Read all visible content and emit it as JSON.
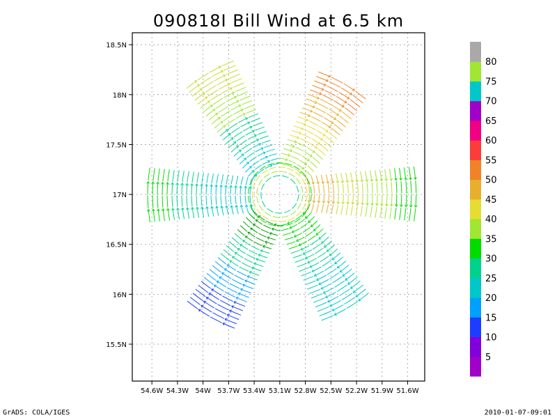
{
  "title": "090818I Bill Wind at 6.5 km",
  "footer": {
    "left": "GrADS: COLA/IGES",
    "right": "2010-01-07-09:01"
  },
  "chart_data": {
    "type": "vector-field",
    "title": "090818I Bill Wind at 6.5 km",
    "x_ticks": [
      "54.6W",
      "54.3W",
      "54W",
      "53.7W",
      "53.4W",
      "53.1W",
      "52.8W",
      "52.5W",
      "52.2W",
      "51.9W",
      "51.6W"
    ],
    "x_tick_values": [
      -54.6,
      -54.3,
      -54.0,
      -53.7,
      -53.4,
      -53.1,
      -52.8,
      -52.5,
      -52.2,
      -51.9,
      -51.6
    ],
    "y_ticks": [
      "15.5N",
      "16N",
      "16.5N",
      "17N",
      "17.5N",
      "18N",
      "18.5N"
    ],
    "y_tick_values": [
      15.5,
      16.0,
      16.5,
      17.0,
      17.5,
      18.0,
      18.5
    ],
    "xlim": [
      -54.83,
      -51.4
    ],
    "ylim": [
      15.13,
      18.62
    ],
    "grid": true,
    "center": {
      "lon": -53.1,
      "lat": 17.0
    },
    "colorbar": {
      "labels": [
        "5",
        "10",
        "15",
        "20",
        "25",
        "30",
        "35",
        "40",
        "45",
        "50",
        "55",
        "60",
        "65",
        "70",
        "75",
        "80"
      ],
      "colors": [
        "#a000c8",
        "#8200dc",
        "#1e3cff",
        "#00a0ff",
        "#00c8c8",
        "#00d28c",
        "#00dc00",
        "#a0e632",
        "#e6dc32",
        "#e6af2d",
        "#f08228",
        "#fa3c3c",
        "#f00082",
        "#a000c8",
        "#00c8c8",
        "#a0e632",
        "#a9a9a9"
      ]
    },
    "arms": [
      {
        "name": "north-west",
        "angle": 120,
        "inner": 0.35,
        "outer": 1.65,
        "colors": [
          "#00c8c8",
          "#00d28c",
          "#a0e632",
          "#c8dc32"
        ]
      },
      {
        "name": "north-east",
        "angle": 60,
        "inner": 0.35,
        "outer": 1.5,
        "colors": [
          "#a0e632",
          "#e6dc32",
          "#e6af2d",
          "#f08228"
        ]
      },
      {
        "name": "west",
        "angle": 180,
        "inner": 0.35,
        "outer": 1.55,
        "colors": [
          "#00c8c8",
          "#00c8c8",
          "#00d28c",
          "#00dc00"
        ]
      },
      {
        "name": "east",
        "angle": 0,
        "inner": 0.35,
        "outer": 1.6,
        "colors": [
          "#e6af2d",
          "#c8dc32",
          "#a0e632",
          "#00dc00"
        ]
      },
      {
        "name": "south-west",
        "angle": 240,
        "inner": 0.35,
        "outer": 1.65,
        "colors": [
          "#00a000",
          "#00d28c",
          "#00a0ff",
          "#1e3cff"
        ]
      },
      {
        "name": "south-east",
        "angle": 300,
        "inner": 0.35,
        "outer": 1.55,
        "colors": [
          "#00dc00",
          "#00d28c",
          "#00c8c8",
          "#00c8c8"
        ]
      }
    ]
  }
}
